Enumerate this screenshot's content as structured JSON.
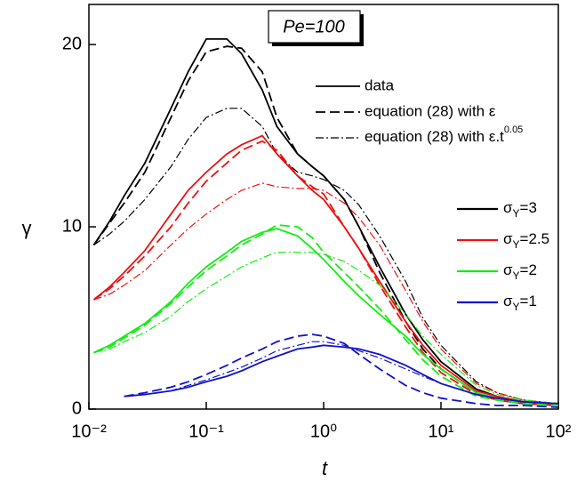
{
  "chart_data": {
    "type": "line",
    "annotation": "Pe=100",
    "x_label": "t",
    "y_label": "γ",
    "x": [
      0.011,
      0.015,
      0.02,
      0.03,
      0.05,
      0.07,
      0.1,
      0.15,
      0.2,
      0.3,
      0.4,
      0.6,
      0.8,
      1,
      1.5,
      2,
      3,
      5,
      7,
      10,
      20,
      30,
      50,
      100
    ],
    "xlim": [
      0.01,
      100
    ],
    "log_x": true,
    "xticks": [
      {
        "value": 0.01,
        "label": "10⁻²"
      },
      {
        "value": 0.1,
        "label": "10⁻¹"
      },
      {
        "value": 1,
        "label": "10⁰"
      },
      {
        "value": 10,
        "label": "10¹"
      },
      {
        "value": 100,
        "label": "10²"
      }
    ],
    "ylim": [
      0,
      22.2
    ],
    "yticks": [
      0,
      10,
      20
    ],
    "style_legend": [
      {
        "style": "solid",
        "label": "data"
      },
      {
        "style": "dashed",
        "label": "equation (28) with ε"
      },
      {
        "style": "dashdot",
        "label": "equation (28) with ε.t",
        "sup": "0.05"
      }
    ],
    "color_legend": [
      {
        "color": "#000000",
        "symbol": "σ",
        "sub": "Y",
        "label": "=3"
      },
      {
        "color": "#ee1111",
        "symbol": "σ",
        "sub": "Y",
        "label": "=2.5"
      },
      {
        "color": "#11ee11",
        "symbol": "σ",
        "sub": "Y",
        "label": "=2"
      },
      {
        "color": "#1111cc",
        "symbol": "σ",
        "sub": "Y",
        "label": "=1"
      }
    ],
    "series": [
      {
        "color": "#000000",
        "style": "solid",
        "values": [
          9,
          10.3,
          11.7,
          13.5,
          16.5,
          18.5,
          20.3,
          20.3,
          19.5,
          17.5,
          15.5,
          14,
          13.3,
          12.8,
          11.5,
          10,
          7.8,
          5.2,
          3.8,
          2.6,
          1.1,
          0.7,
          0.4,
          0.3
        ]
      },
      {
        "color": "#000000",
        "style": "dashed",
        "values": [
          9,
          10.2,
          11.3,
          13,
          16,
          18,
          19.6,
          19.9,
          19.8,
          18.5,
          16,
          14,
          13.3,
          12.8,
          11.5,
          10,
          7.5,
          4.8,
          3.3,
          2.2,
          0.9,
          0.5,
          0.3,
          0.2
        ]
      },
      {
        "color": "#000000",
        "style": "dashdot",
        "values": [
          9,
          9.6,
          10.3,
          11.5,
          13.3,
          14.8,
          16,
          16.5,
          16.5,
          15.5,
          14,
          13,
          12.8,
          12.6,
          12,
          11.2,
          9.5,
          7,
          5,
          3.5,
          1.5,
          0.9,
          0.5,
          0.3
        ]
      },
      {
        "color": "#ee1111",
        "style": "solid",
        "values": [
          6,
          6.7,
          7.5,
          8.7,
          10.7,
          12,
          13,
          14,
          14.5,
          15,
          14,
          12.8,
          12,
          11.5,
          10,
          8.8,
          7,
          4.8,
          3.5,
          2.4,
          1,
          0.7,
          0.4,
          0.3
        ]
      },
      {
        "color": "#ee1111",
        "style": "dashed",
        "values": [
          6,
          6.6,
          7.3,
          8.4,
          10,
          11.3,
          12.5,
          13.5,
          14.2,
          14.7,
          14.2,
          12.8,
          12.2,
          11.8,
          10,
          8.8,
          6.8,
          4.5,
          3.1,
          2,
          0.8,
          0.5,
          0.3,
          0.2
        ]
      },
      {
        "color": "#ee1111",
        "style": "dashdot",
        "values": [
          6,
          6.3,
          6.8,
          7.6,
          9,
          9.9,
          10.7,
          11.5,
          12,
          12.4,
          12.2,
          12.1,
          12.1,
          12,
          11.3,
          10.5,
          9,
          6.5,
          4.8,
          3.3,
          1.4,
          0.9,
          0.5,
          0.3
        ]
      },
      {
        "color": "#11ee11",
        "style": "solid",
        "values": [
          3.1,
          3.5,
          4,
          4.7,
          5.9,
          6.9,
          7.8,
          8.6,
          9.2,
          9.7,
          9.9,
          9.5,
          8.8,
          8.2,
          7,
          6.2,
          5.2,
          4,
          3,
          2.2,
          0.9,
          0.6,
          0.4,
          0.3
        ]
      },
      {
        "color": "#11ee11",
        "style": "dashed",
        "values": [
          3.1,
          3.4,
          3.9,
          4.6,
          5.8,
          6.7,
          7.6,
          8.4,
          9,
          9.6,
          10.1,
          10,
          9.4,
          8.6,
          7.5,
          6.7,
          5.5,
          3.8,
          2.7,
          1.8,
          0.7,
          0.5,
          0.3,
          0.2
        ]
      },
      {
        "color": "#11ee11",
        "style": "dashdot",
        "values": [
          3.1,
          3.3,
          3.7,
          4.2,
          5.1,
          5.9,
          6.6,
          7.3,
          7.8,
          8.3,
          8.6,
          8.6,
          8.6,
          8.5,
          8.1,
          7.6,
          6.8,
          5.2,
          4,
          3,
          1.3,
          0.8,
          0.5,
          0.3
        ]
      },
      {
        "color": "#1111cc",
        "style": "solid",
        "values": [
          null,
          null,
          0.7,
          0.8,
          1.0,
          1.2,
          1.5,
          1.8,
          2.1,
          2.6,
          2.9,
          3.3,
          3.4,
          3.5,
          3.4,
          3.3,
          3,
          2.4,
          1.9,
          1.4,
          0.8,
          0.6,
          0.4,
          0.3
        ]
      },
      {
        "color": "#1111cc",
        "style": "dashed",
        "values": [
          null,
          null,
          0.7,
          0.9,
          1.2,
          1.5,
          1.9,
          2.4,
          2.8,
          3.3,
          3.7,
          4,
          4.1,
          4,
          3.6,
          3,
          2.2,
          1.3,
          0.9,
          0.6,
          0.3,
          0.2,
          0.2,
          0.1
        ]
      },
      {
        "color": "#1111cc",
        "style": "dashdot",
        "values": [
          null,
          null,
          0.7,
          0.8,
          1.0,
          1.3,
          1.6,
          2.0,
          2.3,
          2.8,
          3.2,
          3.5,
          3.7,
          3.7,
          3.5,
          3.2,
          2.8,
          2.2,
          1.8,
          1.4,
          0.8,
          0.6,
          0.4,
          0.3
        ]
      }
    ]
  }
}
